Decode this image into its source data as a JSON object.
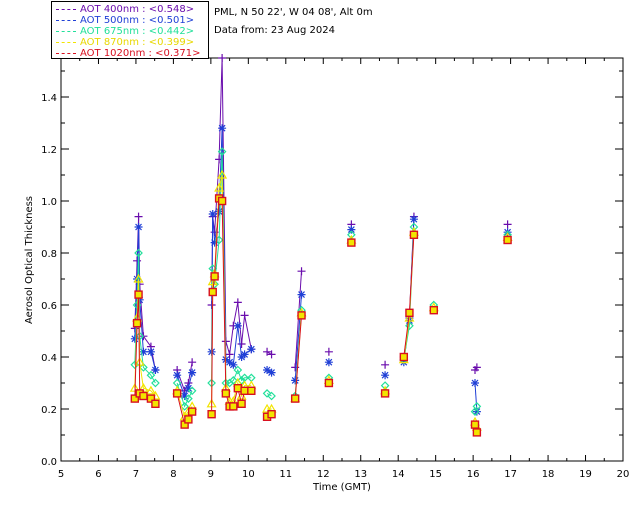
{
  "info": {
    "location": "PML, N 50 22', W 04 08', Alt 0m",
    "date": "Data from: 23 Aug 2024"
  },
  "colors": {
    "aot400": "#6a0dad",
    "aot500": "#1f3fd6",
    "aot675": "#22e09a",
    "aot870": "#f2e400",
    "aot1020": "#d81020"
  },
  "chart_data": {
    "type": "line",
    "xlabel": "Time (GMT)",
    "ylabel": "Aerosol Optical Thickness",
    "xlim": [
      5,
      20
    ],
    "ylim": [
      0,
      1.55
    ],
    "xticks": [
      5,
      6,
      7,
      8,
      9,
      10,
      11,
      12,
      13,
      14,
      15,
      16,
      17,
      18,
      19,
      20
    ],
    "yticks": [
      0.0,
      0.2,
      0.4,
      0.6,
      0.8,
      1.0,
      1.2,
      1.4
    ],
    "ytick_labels": [
      "0.0",
      "0.2",
      "0.4",
      "0.6",
      "0.8",
      "1.0",
      "1.2",
      "1.4"
    ],
    "legend_position": "top-left",
    "series": [
      {
        "name": "AOT  400nm : <0.548>",
        "color": "#6a0dad",
        "marker": "plus",
        "x": [
          6.97,
          7.03,
          7.07,
          7.1,
          7.2,
          7.4,
          7.52,
          8.1,
          8.3,
          8.4,
          8.5,
          9.02,
          9.05,
          9.1,
          9.22,
          9.3,
          9.4,
          9.5,
          9.6,
          9.72,
          9.82,
          9.9,
          10.08,
          10.5,
          10.62,
          11.25,
          11.42,
          12.15,
          12.75,
          13.65,
          14.15,
          14.3,
          14.42,
          16.05,
          16.1,
          16.92
        ],
        "y": [
          0.51,
          0.77,
          0.94,
          0.68,
          0.48,
          0.44,
          0.35,
          0.35,
          0.27,
          0.3,
          0.38,
          0.6,
          0.94,
          0.88,
          1.16,
          1.55,
          0.46,
          0.41,
          0.52,
          0.61,
          0.45,
          0.56,
          0.43,
          0.42,
          0.41,
          0.36,
          0.73,
          0.42,
          0.91,
          0.37,
          0.4,
          0.55,
          0.94,
          0.35,
          0.36,
          0.91
        ]
      },
      {
        "name": "AOT  500nm : <0.501>",
        "color": "#1f3fd6",
        "marker": "star",
        "x": [
          6.97,
          7.03,
          7.07,
          7.1,
          7.2,
          7.4,
          7.52,
          8.1,
          8.3,
          8.4,
          8.5,
          9.02,
          9.05,
          9.1,
          9.22,
          9.3,
          9.4,
          9.5,
          9.6,
          9.72,
          9.82,
          9.9,
          10.08,
          10.5,
          10.62,
          11.25,
          11.42,
          12.15,
          12.75,
          13.65,
          14.15,
          14.3,
          14.42,
          16.05,
          16.1,
          16.92
        ],
        "y": [
          0.47,
          0.7,
          0.9,
          0.62,
          0.42,
          0.42,
          0.35,
          0.33,
          0.25,
          0.28,
          0.34,
          0.42,
          0.95,
          0.84,
          0.96,
          1.28,
          0.39,
          0.38,
          0.37,
          0.52,
          0.4,
          0.41,
          0.43,
          0.35,
          0.34,
          0.31,
          0.64,
          0.38,
          0.89,
          0.33,
          0.38,
          0.54,
          0.93,
          0.3,
          0.19,
          0.88
        ]
      },
      {
        "name": "AOT  675nm : <0.442>",
        "color": "#22e09a",
        "marker": "diamond",
        "x": [
          6.97,
          7.03,
          7.07,
          7.1,
          7.2,
          7.4,
          7.52,
          8.1,
          8.3,
          8.4,
          8.5,
          9.02,
          9.05,
          9.1,
          9.22,
          9.3,
          9.4,
          9.5,
          9.6,
          9.72,
          9.82,
          9.9,
          10.08,
          10.5,
          10.62,
          11.25,
          11.42,
          12.15,
          12.75,
          13.65,
          14.15,
          14.3,
          14.42,
          14.95,
          16.05,
          16.1,
          16.92
        ],
        "y": [
          0.37,
          0.6,
          0.8,
          0.48,
          0.36,
          0.33,
          0.3,
          0.3,
          0.21,
          0.24,
          0.27,
          0.3,
          0.74,
          0.68,
          0.85,
          1.19,
          0.3,
          0.3,
          0.31,
          0.35,
          0.31,
          0.32,
          0.32,
          0.26,
          0.25,
          0.25,
          0.58,
          0.32,
          0.87,
          0.29,
          0.39,
          0.52,
          0.9,
          0.6,
          0.19,
          0.21,
          0.87
        ]
      },
      {
        "name": "AOT  870nm : <0.399>",
        "color": "#f2e400",
        "marker": "triangle",
        "x": [
          6.97,
          7.03,
          7.07,
          7.1,
          7.2,
          7.4,
          7.52,
          8.1,
          8.3,
          8.4,
          8.5,
          9.02,
          9.05,
          9.1,
          9.22,
          9.3,
          9.4,
          9.5,
          9.6,
          9.72,
          9.82,
          9.9,
          10.08,
          10.5,
          10.62,
          11.25,
          11.42,
          12.15,
          12.75,
          13.65,
          14.15,
          14.3,
          14.42,
          14.95,
          16.05,
          16.1,
          16.92
        ],
        "y": [
          0.28,
          0.55,
          0.7,
          0.38,
          0.28,
          0.27,
          0.25,
          0.27,
          0.17,
          0.19,
          0.21,
          0.22,
          0.69,
          0.72,
          1.05,
          1.1,
          0.28,
          0.23,
          0.23,
          0.3,
          0.25,
          0.29,
          0.29,
          0.2,
          0.2,
          0.24,
          0.57,
          0.31,
          0.85,
          0.27,
          0.39,
          0.55,
          0.88,
          0.59,
          0.15,
          0.13,
          0.86
        ]
      },
      {
        "name": "AOT 1020nm : <0.371>",
        "color": "#d81020",
        "marker": "square",
        "x": [
          6.97,
          7.03,
          7.07,
          7.1,
          7.2,
          7.4,
          7.52,
          8.1,
          8.3,
          8.4,
          8.5,
          9.02,
          9.05,
          9.1,
          9.22,
          9.3,
          9.4,
          9.5,
          9.6,
          9.72,
          9.82,
          9.9,
          10.08,
          10.5,
          10.62,
          11.25,
          11.42,
          12.15,
          12.75,
          13.65,
          14.15,
          14.3,
          14.42,
          14.95,
          16.05,
          16.1,
          16.92
        ],
        "y": [
          0.24,
          0.53,
          0.64,
          0.26,
          0.25,
          0.24,
          0.22,
          0.26,
          0.14,
          0.16,
          0.19,
          0.18,
          0.65,
          0.71,
          1.01,
          1.0,
          0.26,
          0.21,
          0.21,
          0.28,
          0.22,
          0.27,
          0.27,
          0.17,
          0.18,
          0.24,
          0.56,
          0.3,
          0.84,
          0.26,
          0.4,
          0.57,
          0.87,
          0.58,
          0.14,
          0.11,
          0.85
        ]
      }
    ]
  }
}
